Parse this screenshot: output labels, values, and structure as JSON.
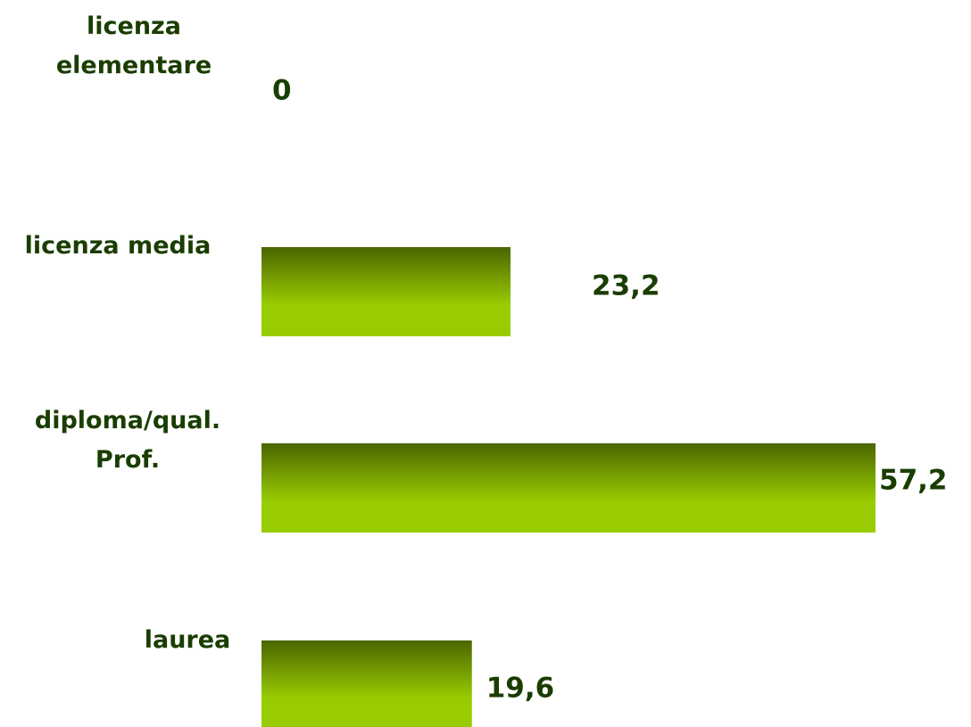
{
  "chart_data": {
    "type": "hbar",
    "categories": [
      "licenza elementare",
      "licenza media",
      "diploma/qual. Prof.",
      "laurea"
    ],
    "values": [
      0,
      23.2,
      57.2,
      19.6
    ],
    "value_labels": [
      "0",
      "23,2",
      "57,2",
      "19,6"
    ],
    "color": "#99cc00",
    "xlim": [
      0,
      57.2
    ]
  }
}
